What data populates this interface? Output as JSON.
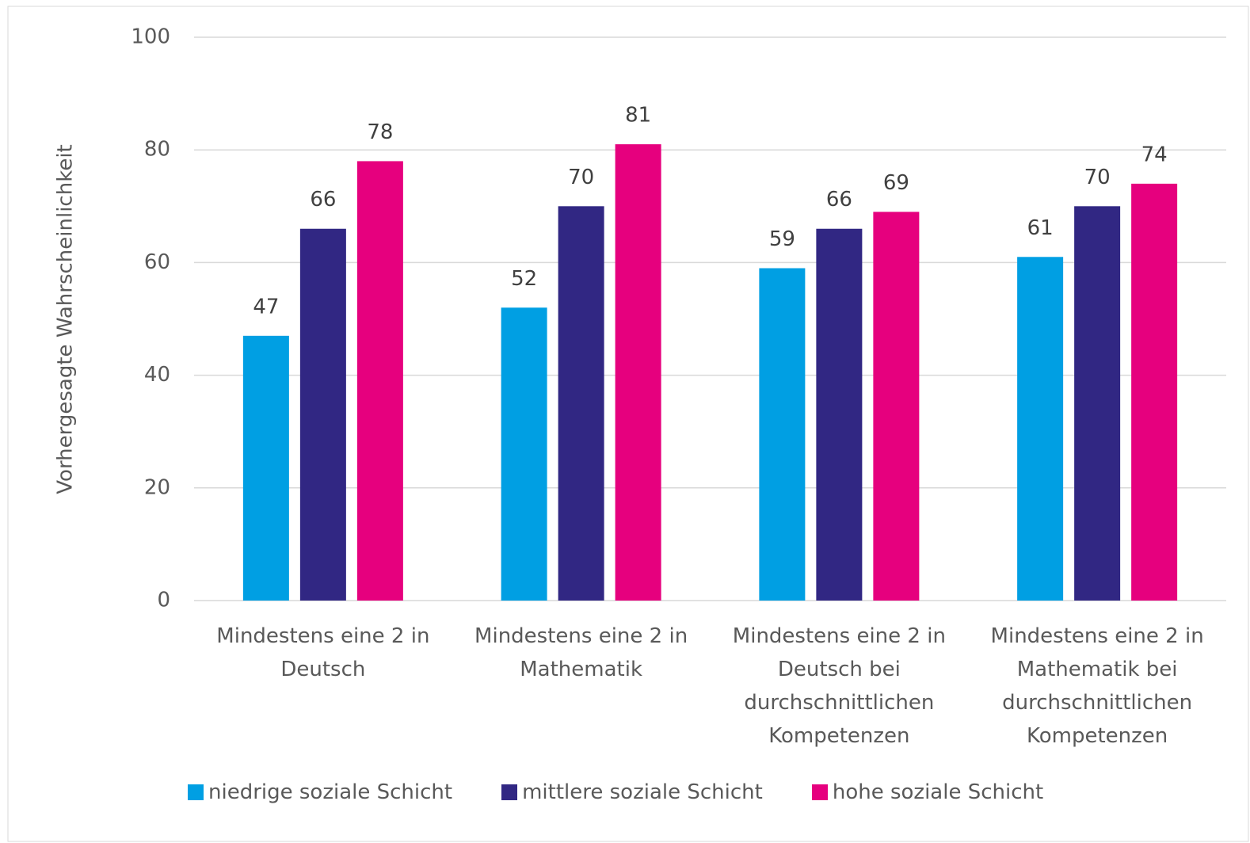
{
  "chart_data": {
    "type": "bar",
    "y_label": "Vorhergesagte Wahrscheinlichkeit",
    "categories": [
      "Mindestens eine 2 in Deutsch",
      "Mindestens eine 2 in Mathematik",
      "Mindestens eine 2 in Deutsch bei durchschnittlichen Kompetenzen",
      "Mindestens eine 2 in Mathematik bei durchschnittlichen Kompetenzen"
    ],
    "series": [
      {
        "name": "niedrige soziale Schicht",
        "color": "#009fe3",
        "values": [
          47,
          52,
          59,
          61
        ]
      },
      {
        "name": "mittlere soziale Schicht",
        "color": "#312783",
        "values": [
          66,
          70,
          66,
          70
        ]
      },
      {
        "name": "hohe soziale Schicht",
        "color": "#e6007e",
        "values": [
          78,
          81,
          69,
          74
        ]
      }
    ],
    "ylim": [
      0,
      100
    ],
    "yticks": [
      0,
      20,
      40,
      60,
      80,
      100
    ],
    "grid": true,
    "legend": "bottom"
  }
}
